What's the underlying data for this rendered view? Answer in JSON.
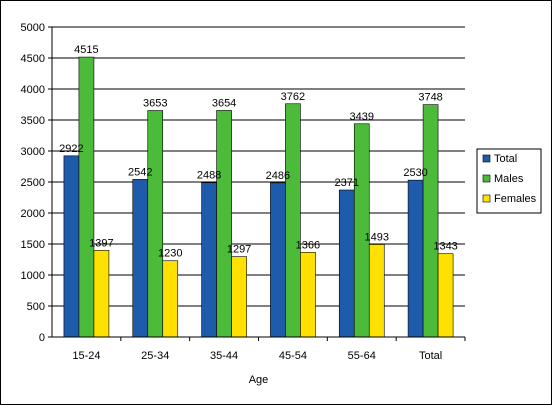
{
  "chart_data": {
    "type": "bar",
    "title": "",
    "xlabel": "Age",
    "ylabel": "",
    "ylim": [
      0,
      5000
    ],
    "yticks": [
      0,
      500,
      1000,
      1500,
      2000,
      2500,
      3000,
      3500,
      4000,
      4500,
      5000
    ],
    "grid": true,
    "legend_position": "right",
    "categories": [
      "15-24",
      "25-34",
      "35-44",
      "45-54",
      "55-64",
      "Total"
    ],
    "series": [
      {
        "name": "Total",
        "color": "#1F5BAB",
        "values": [
          2922,
          2542,
          2488,
          2486,
          2371,
          2530
        ]
      },
      {
        "name": "Males",
        "color": "#4CBB3A",
        "values": [
          4515,
          3653,
          3654,
          3762,
          3439,
          3748
        ]
      },
      {
        "name": "Females",
        "color": "#FFE000",
        "values": [
          1397,
          1230,
          1297,
          1366,
          1493,
          1343
        ]
      }
    ]
  }
}
